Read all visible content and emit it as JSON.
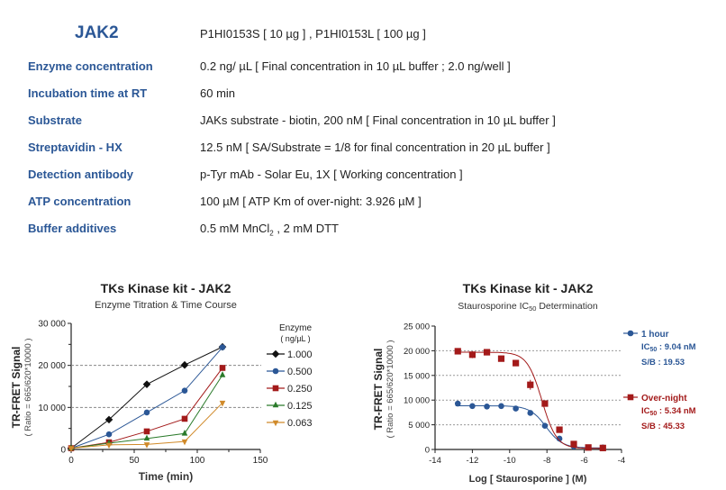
{
  "header": {
    "title": "JAK2",
    "catalog": "P1HI0153S [ 10 µg ] , P1HI0153L [ 100 µg ]"
  },
  "rows": [
    {
      "label": "Enzyme concentration",
      "value": "0.2 ng/ µL    [ Final concentration in 10 µL buffer ; 2.0 ng/well ]"
    },
    {
      "label": "Incubation time at RT",
      "value": "60 min"
    },
    {
      "label": "Substrate",
      "value": "JAKs substrate - biotin, 200 nM    [ Final concentration in 10 µL buffer ]"
    },
    {
      "label": "Streptavidin - HX",
      "value": "12.5 nM    [ SA/Substrate = 1/8 for final concentration in 20 µL buffer ]"
    },
    {
      "label": "Detection antibody",
      "value": "p-Tyr mAb - Solar Eu, 1X    [ Working concentration ]"
    },
    {
      "label": "ATP concentration",
      "value": "100 µM    [ ATP Km of over-night:  3.926 µM ]"
    },
    {
      "label": "Buffer additives",
      "value_pre": "0.5 mM MnCl",
      "value_sub": "2",
      "value_post": " , 2 mM DTT"
    }
  ],
  "chart_data": [
    {
      "type": "line",
      "title": "TKs Kinase kit  -  JAK2",
      "subtitle": "Enzyme Titration & Time Course",
      "xlabel": "Time  (min)",
      "ylabel": "TR-FRET Signal",
      "ylabel2": "( Ratio = 665/620*10000 )",
      "xlim": [
        0,
        150
      ],
      "ylim": [
        0,
        30000
      ],
      "xticks": [
        "0",
        "50",
        "100",
        "150"
      ],
      "yticks": [
        "0",
        "10 000",
        "20 000",
        "30 000"
      ],
      "grid": "dashed at 10 000 and 20 000",
      "legend_title": "Enzyme",
      "legend_unit": "( ng/µL )",
      "legend_position": "right",
      "x": [
        0,
        30,
        60,
        90,
        120
      ],
      "series": [
        {
          "name": "1.000",
          "color": "#111111",
          "marker": "diamond",
          "values": [
            300,
            7100,
            15500,
            20100,
            24400
          ]
        },
        {
          "name": "0.500",
          "color": "#2b5796",
          "marker": "circle",
          "values": [
            300,
            3600,
            8800,
            14000,
            24300
          ]
        },
        {
          "name": "0.250",
          "color": "#a31a1a",
          "marker": "square",
          "values": [
            300,
            1700,
            4300,
            7300,
            19400
          ]
        },
        {
          "name": "0.125",
          "color": "#2a7a2a",
          "marker": "triangle-up",
          "values": [
            300,
            1500,
            2600,
            3800,
            17700
          ]
        },
        {
          "name": "0.063",
          "color": "#d08a2a",
          "marker": "triangle-down",
          "values": [
            300,
            1100,
            1200,
            1900,
            11100
          ]
        }
      ]
    },
    {
      "type": "scatter",
      "title": "TKs Kinase kit  -  JAK2",
      "subtitle_pre": "Staurosporine IC",
      "subtitle_sub": "50",
      "subtitle_post": " Determination",
      "xlabel": "Log [ Staurosporine ]  (M)",
      "ylabel": "TR-FRET Signal",
      "ylabel2": "( Ratio = 665/620*10000 )",
      "xlim": [
        -14,
        -4
      ],
      "ylim": [
        0,
        25000
      ],
      "xticks": [
        "-14",
        "-12",
        "-10",
        "-8",
        "-6",
        "-4"
      ],
      "yticks": [
        "0",
        "5 000",
        "10 000",
        "15 000",
        "20 000",
        "25 000"
      ],
      "grid": "dashed at 5 000, 10 000, 15 000, 20 000",
      "legend_position": "right",
      "x": [
        -12.78,
        -12.0,
        -11.22,
        -10.45,
        -9.67,
        -8.89,
        -8.11,
        -7.33,
        -6.56,
        -5.78,
        -5.0
      ],
      "series": [
        {
          "name": "1 hour",
          "color": "#2b5796",
          "marker": "circle",
          "ic50_label": "IC",
          "ic50_value": " : 9.04 nM",
          "sb": "S/B : 19.53",
          "values": [
            9300,
            8800,
            8700,
            8800,
            8300,
            7400,
            4800,
            2200,
            600,
            400,
            400
          ],
          "fit": {
            "top": 8850,
            "bottom": 300,
            "log_ic50": -8.044,
            "hill": 1.0
          }
        },
        {
          "name": "Over-night",
          "color": "#a31a1a",
          "marker": "square",
          "ic50_label": "IC",
          "ic50_value": " : 5.34 nM",
          "sb": "S/B : 45.33",
          "values": [
            19900,
            19200,
            19700,
            18400,
            17500,
            13100,
            9300,
            4000,
            1100,
            400,
            300
          ],
          "errors": [
            500,
            700,
            300,
            300,
            600,
            1000,
            400,
            300,
            200,
            100,
            100
          ],
          "fit": {
            "top": 19700,
            "bottom": 200,
            "log_ic50": -8.27,
            "hill": 1.1
          }
        }
      ]
    }
  ]
}
